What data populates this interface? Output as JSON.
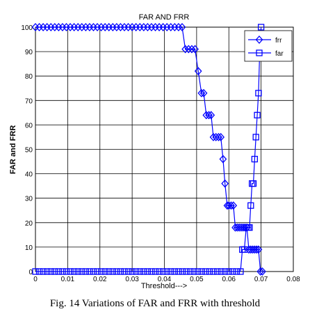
{
  "caption": "Fig. 14 Variations of FAR and FRR with threshold",
  "chart_data": {
    "type": "line",
    "title": "FAR AND FRR",
    "xlabel": "Threshold--->",
    "ylabel": "FAR and FRR",
    "xlim": [
      0,
      0.08
    ],
    "ylim": [
      0,
      100
    ],
    "grid": true,
    "legend_position": "top-right",
    "x_ticks": [
      "0",
      "0.01",
      "0.02",
      "0.03",
      "0.04",
      "0.05",
      "0.06",
      "0.07",
      "0.08"
    ],
    "y_ticks": [
      "0",
      "10",
      "20",
      "30",
      "40",
      "50",
      "60",
      "70",
      "80",
      "90",
      "100"
    ],
    "series": [
      {
        "name": "frr",
        "marker": "diamond",
        "color": "#0000ff",
        "x": [
          0,
          0.0012,
          0.0024,
          0.0036,
          0.0048,
          0.006,
          0.0072,
          0.0084,
          0.0096,
          0.0108,
          0.012,
          0.0132,
          0.0144,
          0.0156,
          0.0168,
          0.018,
          0.0192,
          0.0204,
          0.0216,
          0.0228,
          0.024,
          0.0252,
          0.0264,
          0.0276,
          0.0288,
          0.03,
          0.0312,
          0.0324,
          0.0336,
          0.0348,
          0.036,
          0.0372,
          0.0384,
          0.0396,
          0.0408,
          0.042,
          0.0432,
          0.0444,
          0.0455,
          0.0465,
          0.0475,
          0.0485,
          0.0495,
          0.0505,
          0.0515,
          0.0522,
          0.053,
          0.0538,
          0.0545,
          0.0552,
          0.056,
          0.0568,
          0.0575,
          0.0582,
          0.0588,
          0.0595,
          0.06,
          0.0607,
          0.0614,
          0.062,
          0.0626,
          0.0632,
          0.0638,
          0.0644,
          0.065,
          0.0656,
          0.0662,
          0.0668,
          0.0674,
          0.068,
          0.0686,
          0.0692,
          0.0698,
          0.0704
        ],
        "y": [
          100,
          100,
          100,
          100,
          100,
          100,
          100,
          100,
          100,
          100,
          100,
          100,
          100,
          100,
          100,
          100,
          100,
          100,
          100,
          100,
          100,
          100,
          100,
          100,
          100,
          100,
          100,
          100,
          100,
          100,
          100,
          100,
          100,
          100,
          100,
          100,
          100,
          100,
          100,
          91,
          91,
          91,
          91,
          82,
          73,
          73,
          64,
          64,
          64,
          55,
          55,
          55,
          55,
          46,
          36,
          27,
          27,
          27,
          27,
          18,
          18,
          18,
          18,
          18,
          18,
          18,
          9,
          9,
          9,
          9,
          9,
          9,
          0,
          0
        ]
      },
      {
        "name": "far",
        "marker": "square",
        "color": "#0000ff",
        "x": [
          0,
          0.0012,
          0.0024,
          0.0036,
          0.0048,
          0.006,
          0.0072,
          0.0084,
          0.0096,
          0.0108,
          0.012,
          0.0132,
          0.0144,
          0.0156,
          0.0168,
          0.018,
          0.0192,
          0.0204,
          0.0216,
          0.0228,
          0.024,
          0.0252,
          0.0264,
          0.0276,
          0.0288,
          0.03,
          0.0312,
          0.0324,
          0.0336,
          0.0348,
          0.036,
          0.0372,
          0.0384,
          0.0396,
          0.0408,
          0.042,
          0.0432,
          0.0444,
          0.0456,
          0.0468,
          0.048,
          0.0492,
          0.0504,
          0.0516,
          0.0528,
          0.054,
          0.0552,
          0.0564,
          0.0576,
          0.0588,
          0.06,
          0.0612,
          0.0624,
          0.0636,
          0.0642,
          0.0648,
          0.0654,
          0.066,
          0.0664,
          0.0668,
          0.0672,
          0.0676,
          0.068,
          0.0684,
          0.0688,
          0.0692,
          0.0696,
          0.07
        ],
        "y": [
          0,
          0,
          0,
          0,
          0,
          0,
          0,
          0,
          0,
          0,
          0,
          0,
          0,
          0,
          0,
          0,
          0,
          0,
          0,
          0,
          0,
          0,
          0,
          0,
          0,
          0,
          0,
          0,
          0,
          0,
          0,
          0,
          0,
          0,
          0,
          0,
          0,
          0,
          0,
          0,
          0,
          0,
          0,
          0,
          0,
          0,
          0,
          0,
          0,
          0,
          0,
          0,
          0,
          0,
          9,
          9,
          18,
          18,
          18,
          27,
          36,
          36,
          46,
          55,
          64,
          73,
          91,
          100
        ]
      }
    ]
  }
}
